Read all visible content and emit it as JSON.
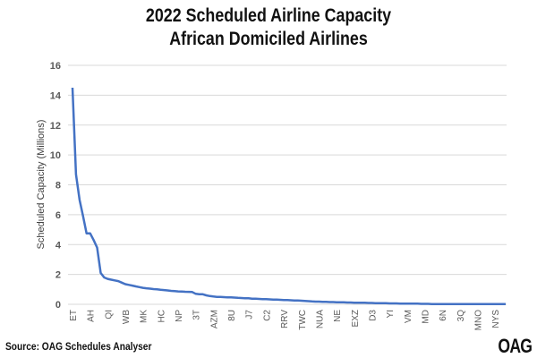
{
  "chart_data": {
    "type": "line",
    "title": "2022 Scheduled Airline Capacity",
    "subtitle": "African Domiciled Airlines",
    "xlabel": "",
    "ylabel": "Scheduled Capacity (Millions)",
    "ylim": [
      0,
      16
    ],
    "yticks": [
      0,
      2,
      4,
      6,
      8,
      10,
      12,
      14,
      16
    ],
    "grid": true,
    "legend": "none",
    "tick_every": 5,
    "tick_labels": [
      "ET",
      "AH",
      "QI",
      "WB",
      "MK",
      "HC",
      "NP",
      "3T",
      "AZM",
      "8U",
      "J7",
      "C2",
      "RRV",
      "TWC",
      "NUA",
      "NE",
      "EXZ",
      "D3",
      "YI",
      "VM",
      "MD",
      "6N",
      "3Q",
      "MNO",
      "NYS"
    ],
    "series": [
      {
        "name": "Scheduled Capacity",
        "color": "#4472C4",
        "values": [
          14.5,
          8.7,
          7.0,
          5.9,
          4.75,
          4.75,
          4.3,
          3.8,
          2.1,
          1.8,
          1.7,
          1.65,
          1.6,
          1.55,
          1.45,
          1.35,
          1.3,
          1.25,
          1.2,
          1.15,
          1.1,
          1.07,
          1.05,
          1.02,
          1.0,
          0.97,
          0.95,
          0.93,
          0.9,
          0.88,
          0.86,
          0.85,
          0.84,
          0.83,
          0.82,
          0.7,
          0.68,
          0.67,
          0.6,
          0.55,
          0.52,
          0.5,
          0.49,
          0.48,
          0.47,
          0.46,
          0.45,
          0.43,
          0.42,
          0.41,
          0.4,
          0.38,
          0.37,
          0.36,
          0.35,
          0.34,
          0.33,
          0.32,
          0.31,
          0.3,
          0.29,
          0.28,
          0.27,
          0.26,
          0.25,
          0.24,
          0.23,
          0.21,
          0.19,
          0.18,
          0.18,
          0.17,
          0.16,
          0.15,
          0.15,
          0.14,
          0.13,
          0.13,
          0.12,
          0.12,
          0.11,
          0.11,
          0.1,
          0.1,
          0.09,
          0.09,
          0.08,
          0.08,
          0.07,
          0.07,
          0.06,
          0.06,
          0.06,
          0.05,
          0.05,
          0.05,
          0.04,
          0.04,
          0.04,
          0.03,
          0.03,
          0.03,
          0.02,
          0.02,
          0.02,
          0.02,
          0.02,
          0.01,
          0.01,
          0.01,
          0.01,
          0.01,
          0.01,
          0.01,
          0.01,
          0.01,
          0.01,
          0.01,
          0.01,
          0.01,
          0.01,
          0.01,
          0.01,
          0.01
        ]
      }
    ]
  },
  "source": "Source: OAG Schedules Analyser",
  "logo": "OAG"
}
